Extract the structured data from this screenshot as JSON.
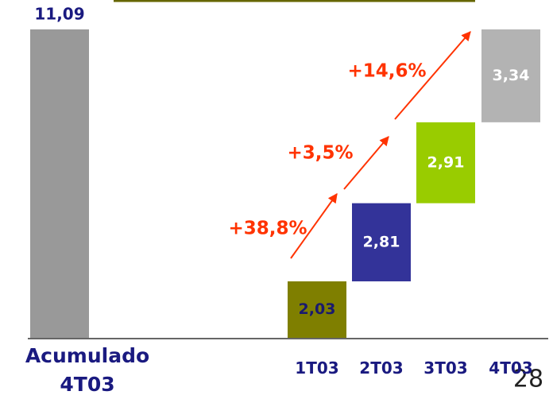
{
  "chart_data": {
    "type": "waterfall",
    "categories": [
      "Acumulado 4T03",
      "1T03",
      "2T03",
      "3T03",
      "4T03"
    ],
    "values": [
      11.09,
      2.03,
      2.81,
      2.91,
      3.34
    ],
    "value_labels": [
      "11,09",
      "2,03",
      "2,81",
      "2,91",
      "3,34"
    ],
    "colors": [
      "#999999",
      "#7f7f00",
      "#333399",
      "#99cc00",
      "#b3b3b3"
    ],
    "label_colors": [
      "#1a1a80",
      "#1a1a6e",
      "#ffffff",
      "#ffffff",
      "#ffffff"
    ],
    "annotations": [
      "+38,8%",
      "+3,5%",
      "+14,6%"
    ]
  },
  "page_number": "28"
}
